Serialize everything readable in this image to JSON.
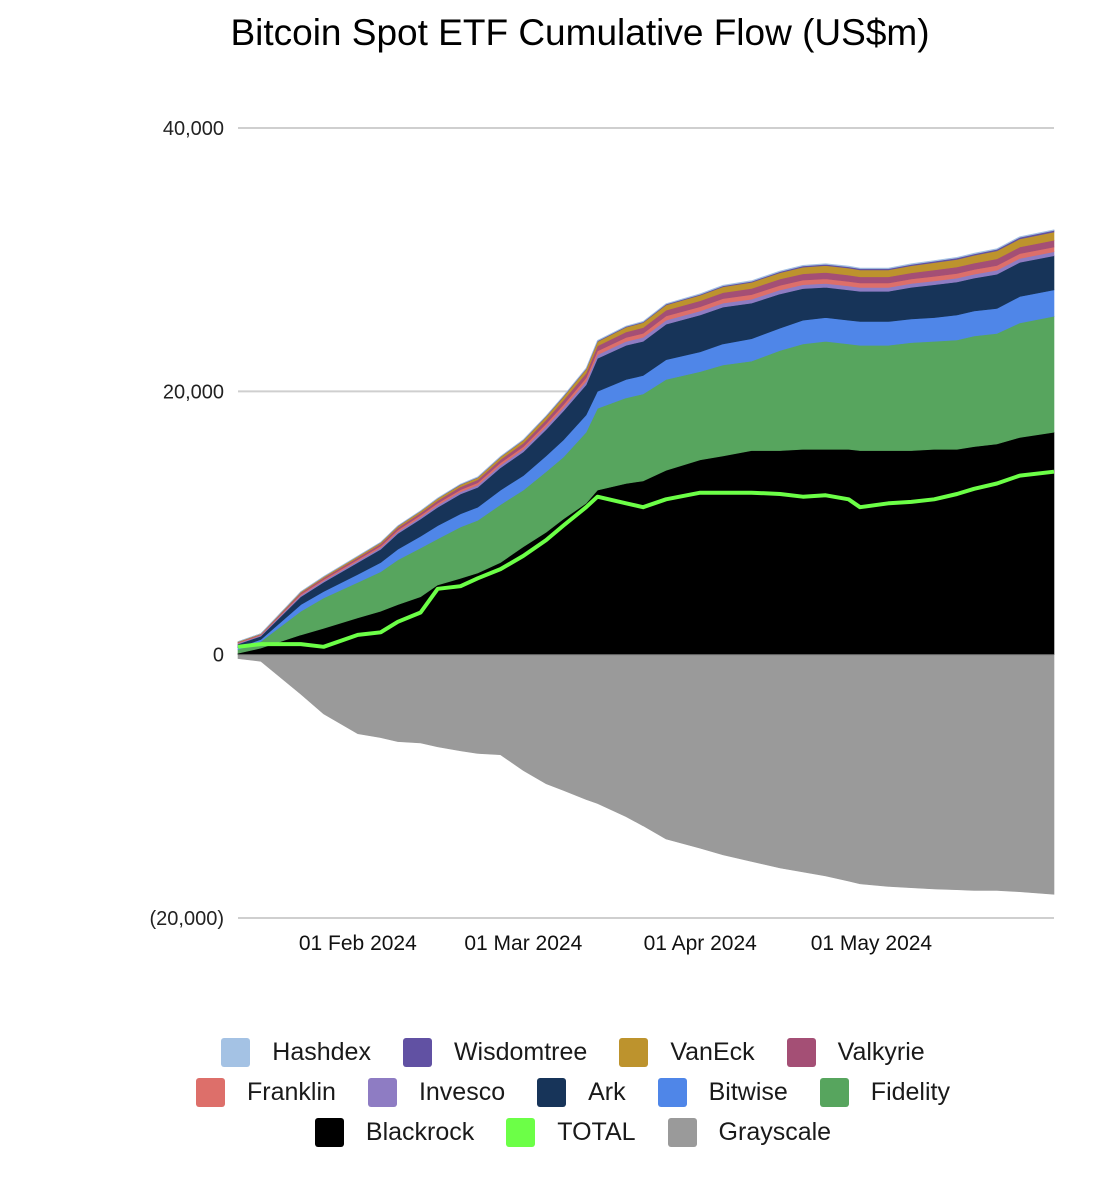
{
  "chart_data": {
    "type": "area",
    "stacked": true,
    "title": "Bitcoin Spot ETF Cumulative Flow (US$m)",
    "xlabel": "",
    "ylabel": "",
    "ylim": [
      -20000,
      40000
    ],
    "yticks": [
      40000,
      20000,
      0,
      -20000
    ],
    "ytick_labels": [
      "40,000",
      "20,000",
      "0",
      "(20,000)"
    ],
    "xlim_days": [
      0,
      144
    ],
    "x_origin_date": "2024-01-10",
    "xticks": [
      {
        "day": 22,
        "label": "01 Feb 2024"
      },
      {
        "day": 51,
        "label": "01 Mar 2024"
      },
      {
        "day": 82,
        "label": "01 Apr 2024"
      },
      {
        "day": 112,
        "label": "01 May 2024"
      }
    ],
    "grid": true,
    "legend_position": "bottom",
    "x_days": [
      1,
      5,
      12,
      16,
      22,
      26,
      29,
      33,
      36,
      40,
      43,
      47,
      51,
      55,
      58,
      62,
      64,
      69,
      72,
      76,
      82,
      86,
      91,
      96,
      100,
      104,
      108,
      110,
      115,
      119,
      123,
      127,
      130,
      134,
      138,
      144
    ],
    "series": [
      {
        "name": "Blackrock",
        "color": "#000000",
        "values": [
          100,
          500,
          1500,
          2000,
          2800,
          3300,
          3800,
          4400,
          5300,
          5800,
          6200,
          7000,
          8200,
          9300,
          10300,
          11500,
          12500,
          13000,
          13200,
          14000,
          14800,
          15100,
          15500,
          15500,
          15600,
          15600,
          15600,
          15500,
          15500,
          15500,
          15600,
          15600,
          15800,
          16000,
          16500,
          16900
        ]
      },
      {
        "name": "Fidelity",
        "color": "#57a55e",
        "values": [
          300,
          500,
          1800,
          2300,
          2700,
          3000,
          3400,
          3700,
          3500,
          3900,
          4000,
          4400,
          4300,
          4600,
          4700,
          5400,
          6200,
          6500,
          6600,
          6900,
          6700,
          6900,
          6800,
          7600,
          8000,
          8200,
          8000,
          8000,
          8000,
          8200,
          8200,
          8300,
          8400,
          8400,
          8700,
          8800
        ]
      },
      {
        "name": "Bitwise",
        "color": "#4f86e8",
        "values": [
          150,
          150,
          500,
          500,
          600,
          700,
          800,
          900,
          1000,
          1000,
          1000,
          1100,
          1100,
          1200,
          1300,
          1300,
          1300,
          1400,
          1400,
          1500,
          1500,
          1600,
          1700,
          1700,
          1800,
          1800,
          1800,
          1800,
          1800,
          1800,
          1800,
          1900,
          1900,
          1900,
          2000,
          2000
        ]
      },
      {
        "name": "Ark",
        "color": "#173459",
        "values": [
          250,
          250,
          600,
          700,
          900,
          1000,
          1200,
          1300,
          1400,
          1500,
          1500,
          1700,
          1800,
          2000,
          2200,
          2300,
          2500,
          2600,
          2600,
          2700,
          2800,
          2800,
          2700,
          2600,
          2400,
          2300,
          2300,
          2300,
          2300,
          2400,
          2500,
          2500,
          2500,
          2600,
          2600,
          2600
        ]
      },
      {
        "name": "Invesco",
        "color": "#8e7cc3",
        "values": [
          60,
          60,
          100,
          110,
          120,
          130,
          140,
          150,
          160,
          170,
          180,
          190,
          200,
          220,
          240,
          260,
          280,
          290,
          300,
          300,
          300,
          300,
          300,
          300,
          300,
          300,
          300,
          290,
          290,
          290,
          290,
          300,
          300,
          300,
          300,
          300
        ]
      },
      {
        "name": "Franklin",
        "color": "#dd6f6a",
        "values": [
          50,
          50,
          90,
          100,
          110,
          120,
          130,
          140,
          150,
          160,
          170,
          180,
          200,
          220,
          240,
          260,
          280,
          300,
          310,
          320,
          330,
          340,
          350,
          350,
          350,
          350,
          350,
          340,
          340,
          340,
          350,
          350,
          350,
          360,
          360,
          360
        ]
      },
      {
        "name": "Valkyrie",
        "color": "#a44f75",
        "values": [
          40,
          40,
          100,
          120,
          140,
          160,
          170,
          180,
          200,
          220,
          230,
          250,
          270,
          300,
          330,
          360,
          390,
          420,
          430,
          440,
          450,
          460,
          470,
          480,
          480,
          480,
          480,
          470,
          470,
          470,
          480,
          490,
          490,
          500,
          500,
          510
        ]
      },
      {
        "name": "VanEck",
        "color": "#bd932d",
        "values": [
          40,
          40,
          80,
          90,
          100,
          110,
          120,
          130,
          150,
          160,
          170,
          190,
          210,
          240,
          270,
          300,
          330,
          360,
          380,
          400,
          420,
          440,
          460,
          480,
          500,
          520,
          530,
          520,
          520,
          540,
          560,
          580,
          590,
          610,
          620,
          630
        ]
      },
      {
        "name": "Wisdomtree",
        "color": "#6151a3",
        "values": [
          5,
          5,
          10,
          12,
          15,
          17,
          20,
          22,
          25,
          28,
          30,
          32,
          35,
          38,
          40,
          45,
          50,
          55,
          60,
          65,
          70,
          75,
          80,
          85,
          90,
          95,
          100,
          100,
          100,
          100,
          105,
          110,
          110,
          115,
          120,
          120
        ]
      },
      {
        "name": "Hashdex",
        "color": "#a4c2e4",
        "values": [
          5,
          5,
          10,
          12,
          14,
          16,
          18,
          20,
          22,
          24,
          26,
          28,
          30,
          32,
          34,
          36,
          38,
          40,
          40,
          42,
          44,
          46,
          48,
          50,
          50,
          50,
          50,
          50,
          50,
          50,
          50,
          50,
          50,
          50,
          50,
          50
        ]
      },
      {
        "name": "Grayscale",
        "color": "#9a9a9a",
        "values": [
          -300,
          -500,
          -3000,
          -4500,
          -6000,
          -6300,
          -6600,
          -6700,
          -7000,
          -7300,
          -7500,
          -7600,
          -8800,
          -9800,
          -10300,
          -11000,
          -11300,
          -12300,
          -13000,
          -14000,
          -14700,
          -15200,
          -15700,
          -16200,
          -16500,
          -16800,
          -17200,
          -17400,
          -17600,
          -17700,
          -17800,
          -17850,
          -17900,
          -17900,
          -18000,
          -18200
        ]
      },
      {
        "name": "TOTAL",
        "color": "#6cff47",
        "kind": "line",
        "values": [
          600,
          800,
          800,
          600,
          1500,
          1700,
          2500,
          3200,
          5000,
          5200,
          5800,
          6500,
          7500,
          8700,
          9800,
          11200,
          12000,
          11500,
          11200,
          11800,
          12300,
          12300,
          12300,
          12200,
          12000,
          12100,
          11800,
          11200,
          11500,
          11600,
          11800,
          12200,
          12600,
          13000,
          13600,
          13900
        ]
      }
    ]
  },
  "legend_rows": [
    [
      {
        "name": "Hashdex",
        "color": "#a4c2e4"
      },
      {
        "name": "Wisdomtree",
        "color": "#6151a3"
      },
      {
        "name": "VanEck",
        "color": "#bd932d"
      },
      {
        "name": "Valkyrie",
        "color": "#a44f75"
      }
    ],
    [
      {
        "name": "Franklin",
        "color": "#dd6f6a"
      },
      {
        "name": "Invesco",
        "color": "#8e7cc3"
      },
      {
        "name": "Ark",
        "color": "#173459"
      },
      {
        "name": "Bitwise",
        "color": "#4f86e8"
      },
      {
        "name": "Fidelity",
        "color": "#57a55e"
      }
    ],
    [
      {
        "name": "Blackrock",
        "color": "#000000"
      },
      {
        "name": "TOTAL",
        "color": "#6cff47"
      },
      {
        "name": "Grayscale",
        "color": "#9a9a9a"
      }
    ]
  ]
}
